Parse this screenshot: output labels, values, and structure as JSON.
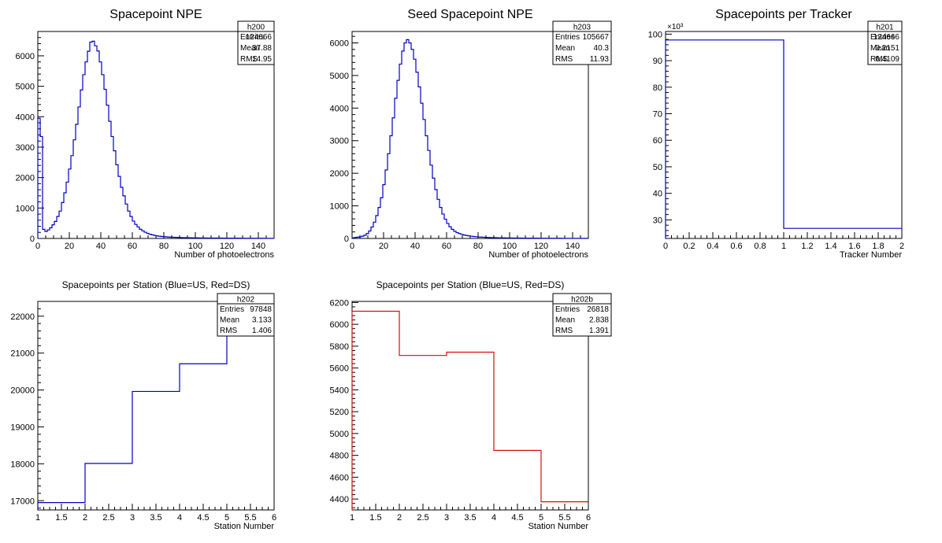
{
  "chart_data": [
    {
      "type": "histogram",
      "title": "Spacepoint NPE",
      "xlabel": "Number of photoelectrons",
      "ylabel": "",
      "xlim": [
        0,
        150
      ],
      "ylim": [
        0,
        6800
      ],
      "xticks": [
        0,
        20,
        40,
        60,
        80,
        100,
        120,
        140
      ],
      "yticks": [
        0,
        1000,
        2000,
        3000,
        4000,
        5000,
        6000
      ],
      "color": "#0000c8",
      "bin_width": 1.5,
      "values": [
        3950,
        3350,
        300,
        230,
        280,
        350,
        450,
        560,
        720,
        900,
        1180,
        1500,
        1850,
        2280,
        2720,
        3240,
        3750,
        4320,
        4880,
        5380,
        5800,
        6150,
        6450,
        6480,
        6330,
        6160,
        5800,
        5380,
        4900,
        4380,
        3850,
        3350,
        2880,
        2420,
        2040,
        1680,
        1400,
        1130,
        900,
        720,
        570,
        460,
        380,
        300,
        250,
        205,
        170,
        140,
        120,
        100,
        85,
        75,
        65,
        58,
        52,
        46,
        42,
        38,
        35,
        32,
        30,
        28,
        26,
        24,
        22,
        21,
        20,
        19,
        18,
        17,
        16,
        15,
        14,
        14,
        13,
        13,
        12,
        12,
        11,
        11,
        10,
        10,
        10,
        9,
        9,
        9,
        8,
        8,
        8,
        7,
        7,
        7,
        6,
        6,
        6,
        6,
        5,
        5,
        5,
        5
      ],
      "stats": {
        "name": "h200",
        "rows": [
          {
            "k": "Entries",
            "v": "124666"
          },
          {
            "k": "Mean",
            "v": "37.88"
          },
          {
            "k": "RMS",
            "v": "14.95"
          }
        ]
      }
    },
    {
      "type": "histogram",
      "title": "Seed Spacepoint NPE",
      "xlabel": "Number of photoelectrons",
      "ylabel": "",
      "xlim": [
        0,
        150
      ],
      "ylim": [
        0,
        6350
      ],
      "xticks": [
        0,
        20,
        40,
        60,
        80,
        100,
        120,
        140
      ],
      "yticks": [
        0,
        1000,
        2000,
        3000,
        4000,
        5000,
        6000
      ],
      "color": "#0000c8",
      "bin_width": 1.5,
      "values": [
        20,
        30,
        40,
        50,
        70,
        100,
        150,
        230,
        350,
        500,
        700,
        950,
        1250,
        1650,
        2100,
        2600,
        3150,
        3700,
        4300,
        4850,
        5350,
        5750,
        6000,
        6100,
        6000,
        5800,
        5500,
        5100,
        4650,
        4150,
        3650,
        3150,
        2700,
        2250,
        1850,
        1500,
        1200,
        950,
        750,
        590,
        460,
        360,
        280,
        220,
        180,
        150,
        125,
        105,
        90,
        78,
        68,
        60,
        53,
        47,
        42,
        38,
        34,
        31,
        28,
        26,
        24,
        22,
        20,
        19,
        18,
        17,
        16,
        15,
        14,
        13,
        12,
        12,
        11,
        11,
        10,
        10,
        9,
        9,
        9,
        8,
        8,
        8,
        7,
        7,
        7,
        6,
        6,
        6,
        6,
        5,
        5,
        5,
        5,
        5,
        4,
        4,
        4,
        4,
        4,
        4
      ],
      "stats": {
        "name": "h203",
        "rows": [
          {
            "k": "Entries",
            "v": "105667"
          },
          {
            "k": "Mean",
            "v": "40.3"
          },
          {
            "k": "RMS",
            "v": "11.93"
          }
        ]
      }
    },
    {
      "type": "histogram",
      "title": "Spacepoints per Tracker",
      "xlabel": "Tracker Number",
      "ylabel": "",
      "xlim": [
        0,
        2
      ],
      "ylim": [
        23,
        101
      ],
      "xticks": [
        0,
        0.2,
        0.4,
        0.6,
        0.8,
        1,
        1.2,
        1.4,
        1.6,
        1.8,
        2
      ],
      "yticks": [
        30,
        40,
        50,
        60,
        70,
        80,
        90,
        100
      ],
      "yexp": "×10³",
      "color": "#0000c8",
      "bin_width": 1,
      "values": [
        97.8,
        26.8
      ],
      "stats": {
        "name": "h201",
        "rows": [
          {
            "k": "Entries",
            "v": "124666"
          },
          {
            "k": "Mean",
            "v": "0.2151"
          },
          {
            "k": "RMS",
            "v": "0.4109"
          }
        ]
      }
    },
    {
      "type": "histogram",
      "title": "Spacepoints per Station (Blue=US, Red=DS)",
      "xlabel": "Station Number",
      "ylabel": "",
      "xlim": [
        1,
        6
      ],
      "ylim": [
        16750,
        22400
      ],
      "xticks": [
        1,
        1.5,
        2,
        2.5,
        3,
        3.5,
        4,
        4.5,
        5,
        5.5,
        6
      ],
      "yticks": [
        17000,
        18000,
        19000,
        20000,
        21000,
        22000
      ],
      "color": "#0000c8",
      "bin_width": 1,
      "values": [
        16950,
        18010,
        19960,
        20710,
        22150
      ],
      "stats": {
        "name": "h202",
        "rows": [
          {
            "k": "Entries",
            "v": "97848"
          },
          {
            "k": "Mean",
            "v": "3.133"
          },
          {
            "k": "RMS",
            "v": "1.406"
          }
        ]
      }
    },
    {
      "type": "histogram",
      "title": "Spacepoints per Station (Blue=US, Red=DS)",
      "xlabel": "Station Number",
      "ylabel": "",
      "xlim": [
        1,
        6
      ],
      "ylim": [
        4300,
        6210
      ],
      "xticks": [
        1,
        1.5,
        2,
        2.5,
        3,
        3.5,
        4,
        4.5,
        5,
        5.5,
        6
      ],
      "yticks": [
        4400,
        4600,
        4800,
        5000,
        5200,
        5400,
        5600,
        5800,
        6000,
        6200
      ],
      "color": "#d01010",
      "bin_width": 1,
      "values": [
        6120,
        5715,
        5745,
        4845,
        4375
      ],
      "stats": {
        "name": "h202b",
        "rows": [
          {
            "k": "Entries",
            "v": "26818"
          },
          {
            "k": "Mean",
            "v": "2.838"
          },
          {
            "k": "RMS",
            "v": "1.391"
          }
        ]
      }
    }
  ]
}
